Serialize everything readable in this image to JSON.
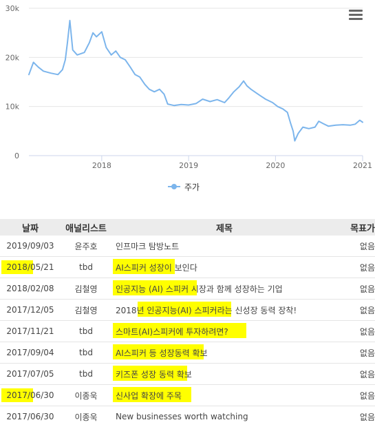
{
  "chart_data": {
    "type": "line",
    "xlabel": "",
    "ylabel": "",
    "x_ticks": [
      "2018",
      "2019",
      "2020",
      "2021"
    ],
    "y_ticks": [
      "0",
      "10k",
      "20k",
      "30k"
    ],
    "ylim": [
      0,
      30000
    ],
    "xlim": [
      "2017-03-01",
      "2021-01-01"
    ],
    "grid": true,
    "legend_position": "bottom-center",
    "series": [
      {
        "name": "주가",
        "color": "#7cb5ec",
        "points": [
          [
            "2017-03-01",
            16500
          ],
          [
            "2017-03-20",
            19000
          ],
          [
            "2017-04-10",
            18000
          ],
          [
            "2017-05-01",
            17200
          ],
          [
            "2017-06-01",
            16800
          ],
          [
            "2017-07-01",
            16500
          ],
          [
            "2017-07-20",
            17500
          ],
          [
            "2017-08-01",
            19500
          ],
          [
            "2017-08-10",
            23000
          ],
          [
            "2017-08-20",
            27500
          ],
          [
            "2017-09-01",
            21500
          ],
          [
            "2017-09-20",
            20500
          ],
          [
            "2017-10-20",
            21000
          ],
          [
            "2017-11-10",
            23000
          ],
          [
            "2017-11-25",
            25000
          ],
          [
            "2017-12-10",
            24200
          ],
          [
            "2018-01-01",
            25200
          ],
          [
            "2018-01-20",
            22000
          ],
          [
            "2018-02-10",
            20500
          ],
          [
            "2018-03-01",
            21300
          ],
          [
            "2018-03-20",
            20000
          ],
          [
            "2018-04-10",
            19500
          ],
          [
            "2018-05-01",
            18000
          ],
          [
            "2018-05-21",
            16500
          ],
          [
            "2018-06-10",
            16000
          ],
          [
            "2018-07-01",
            14500
          ],
          [
            "2018-07-20",
            13500
          ],
          [
            "2018-08-10",
            13000
          ],
          [
            "2018-09-01",
            13500
          ],
          [
            "2018-09-20",
            12500
          ],
          [
            "2018-10-05",
            10500
          ],
          [
            "2018-11-01",
            10200
          ],
          [
            "2018-12-01",
            10400
          ],
          [
            "2019-01-01",
            10300
          ],
          [
            "2019-02-01",
            10600
          ],
          [
            "2019-03-01",
            11500
          ],
          [
            "2019-04-01",
            11000
          ],
          [
            "2019-05-01",
            11400
          ],
          [
            "2019-06-01",
            10800
          ],
          [
            "2019-06-20",
            11800
          ],
          [
            "2019-07-10",
            13000
          ],
          [
            "2019-08-01",
            14000
          ],
          [
            "2019-08-20",
            15200
          ],
          [
            "2019-09-03",
            14200
          ],
          [
            "2019-09-20",
            13500
          ],
          [
            "2019-10-20",
            12500
          ],
          [
            "2019-11-20",
            11500
          ],
          [
            "2019-12-20",
            10800
          ],
          [
            "2020-01-10",
            10000
          ],
          [
            "2020-02-01",
            9500
          ],
          [
            "2020-02-20",
            8800
          ],
          [
            "2020-03-05",
            6500
          ],
          [
            "2020-03-15",
            5000
          ],
          [
            "2020-03-22",
            3000
          ],
          [
            "2020-04-05",
            4500
          ],
          [
            "2020-04-25",
            5800
          ],
          [
            "2020-05-20",
            5500
          ],
          [
            "2020-06-15",
            5800
          ],
          [
            "2020-07-01",
            7000
          ],
          [
            "2020-07-20",
            6500
          ],
          [
            "2020-08-10",
            6000
          ],
          [
            "2020-09-10",
            6200
          ],
          [
            "2020-10-10",
            6300
          ],
          [
            "2020-11-10",
            6200
          ],
          [
            "2020-12-01",
            6400
          ],
          [
            "2020-12-20",
            7200
          ],
          [
            "2021-01-01",
            6800
          ]
        ]
      }
    ]
  },
  "chart_menu": {
    "icon": "hamburger-icon"
  },
  "legend": {
    "label": "주가",
    "color": "#7cb5ec"
  },
  "table": {
    "headers": {
      "date": "날짜",
      "analyst": "애널리스트",
      "title": "제목",
      "target": "목표가"
    },
    "highlight_color": "#ffff00",
    "rows": [
      {
        "date": "2019/09/03",
        "analyst": "윤주호",
        "title": "인프마크 탐방노트",
        "target": "없음",
        "date_highlight": false,
        "title_highlight": false
      },
      {
        "date": "2018/05/21",
        "analyst": "tbd",
        "title": "AI스피커 성장이 보인다",
        "target": "없음",
        "date_highlight": true,
        "title_highlight": true,
        "title_hl_width": 90
      },
      {
        "date": "2018/02/08",
        "analyst": "김철영",
        "title": "인공지능 (AI) 스피커 시장과 함께 성장하는 기업",
        "target": "없음",
        "date_highlight": false,
        "title_highlight": true,
        "title_hl_width": 122
      },
      {
        "date": "2017/12/05",
        "analyst": "김철영",
        "title": "2018년 인공지능(AI) 스피커라는 신성장 동력 장착!",
        "target": "없음",
        "date_highlight": false,
        "title_highlight": true,
        "title_hl_offset": 36,
        "title_hl_width": 136
      },
      {
        "date": "2017/11/21",
        "analyst": "tbd",
        "title": "스마트(AI)스피커에 투자하려면?",
        "target": "없음",
        "date_highlight": false,
        "title_highlight": true,
        "title_hl_width": 194
      },
      {
        "date": "2017/09/04",
        "analyst": "tbd",
        "title": "AI스피커 등 성장동력 확보",
        "target": "없음",
        "date_highlight": false,
        "title_highlight": true,
        "title_hl_width": 132
      },
      {
        "date": "2017/07/05",
        "analyst": "tbd",
        "title": "키즈폰 성장 동력 확보",
        "target": "없음",
        "date_highlight": false,
        "title_highlight": true,
        "title_hl_width": 108
      },
      {
        "date": "2017/06/30",
        "analyst": "이종욱",
        "title": "신사업 확장에 주목",
        "target": "없음",
        "date_highlight": true,
        "title_highlight": true,
        "title_hl_width": 114
      },
      {
        "date": "2017/06/30",
        "analyst": "이종욱",
        "title": "New businesses worth watching",
        "target": "없음",
        "date_highlight": false,
        "title_highlight": false
      }
    ]
  }
}
